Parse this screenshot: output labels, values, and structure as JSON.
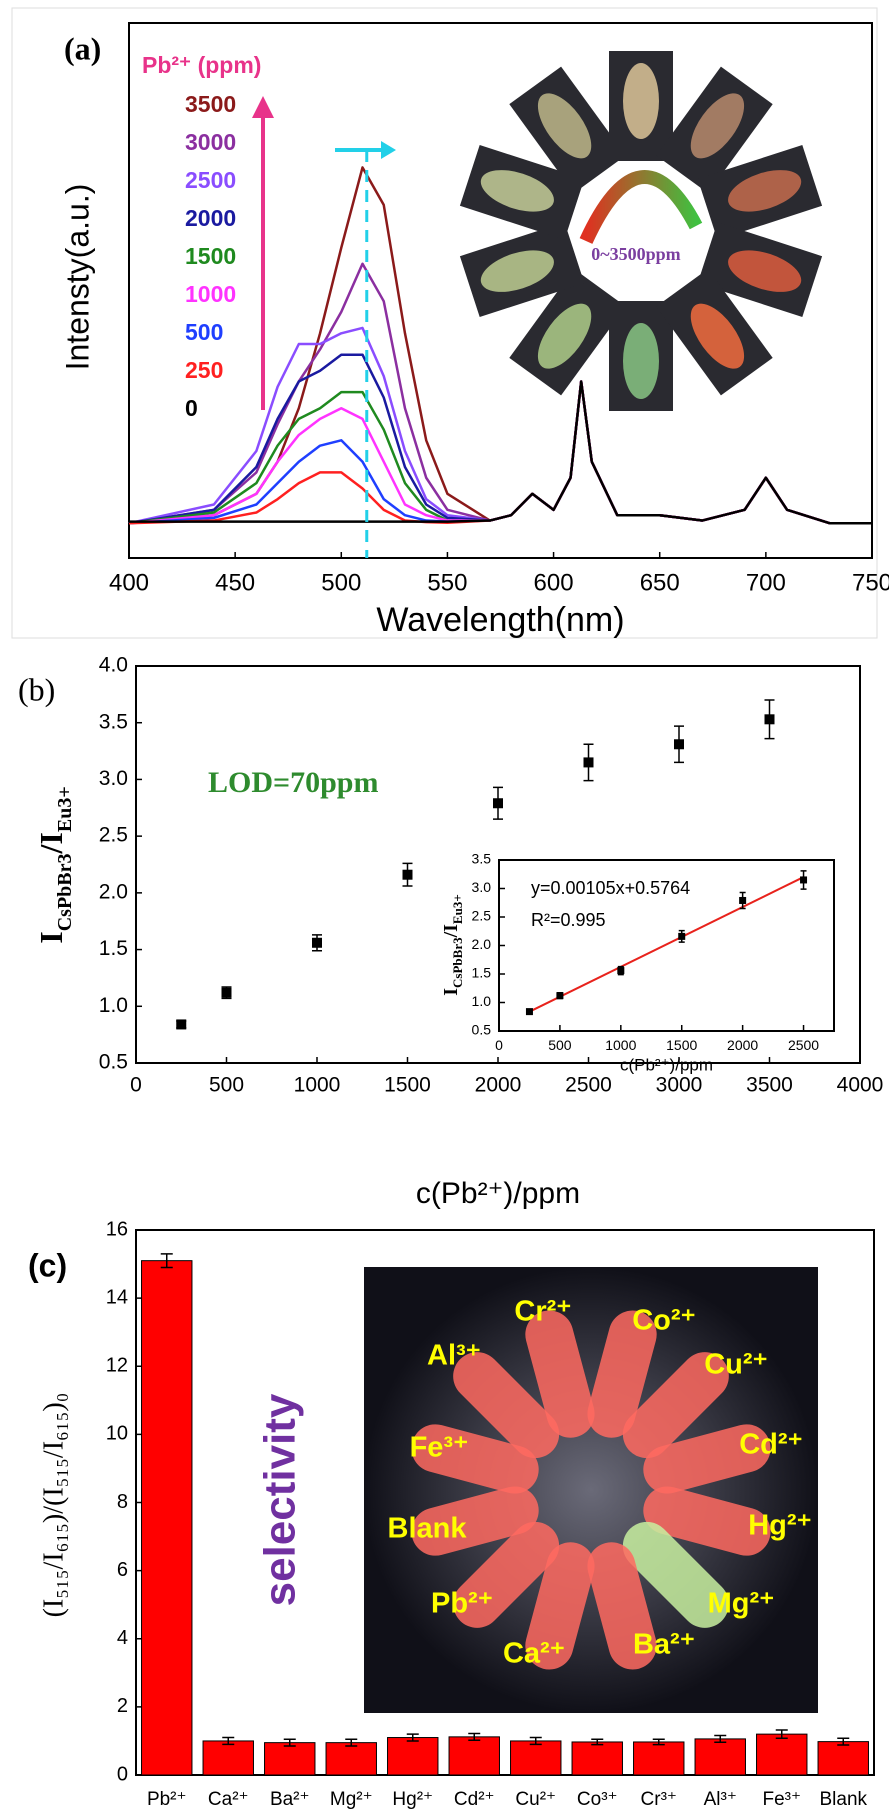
{
  "chart_data": [
    {
      "type": "line",
      "label": "(a)",
      "xlabel": "Wavelength(nm)",
      "ylabel": "Intensty(a.u.)",
      "legend_title": "Pb²⁺ (ppm)",
      "annotation": "0~3500ppm",
      "xlim": [
        400,
        750
      ],
      "xticks": [
        400,
        450,
        500,
        550,
        600,
        650,
        700,
        750
      ],
      "ylim": [
        0,
        100
      ],
      "x": [
        400,
        440,
        460,
        470,
        480,
        490,
        500,
        510,
        520,
        530,
        540,
        550,
        570,
        580,
        590,
        600,
        608,
        613,
        618,
        630,
        650,
        670,
        690,
        700,
        710,
        730,
        750
      ],
      "series": [
        {
          "name": "3500",
          "color": "#8b1a1a",
          "values": [
            6.5,
            8,
            12,
            18,
            28,
            42,
            58,
            73,
            66,
            42,
            22,
            12,
            7,
            8,
            12,
            9,
            15,
            33,
            18,
            8,
            8,
            7,
            9,
            15,
            9,
            6.5,
            6.5
          ]
        },
        {
          "name": "3000",
          "color": "#8b2fa0",
          "values": [
            6.5,
            9,
            16,
            25,
            33,
            39,
            46,
            55,
            48,
            28,
            15,
            9,
            7,
            8,
            12,
            9,
            15,
            33,
            18,
            8,
            8,
            7,
            9,
            15,
            9,
            6.5,
            6.5
          ]
        },
        {
          "name": "2500",
          "color": "#8a4dff",
          "values": [
            6.5,
            10,
            20,
            32,
            40,
            40,
            42,
            43,
            34,
            20,
            11,
            8,
            7,
            8,
            12,
            9,
            15,
            33,
            18,
            8,
            8,
            7,
            9,
            15,
            9,
            6.5,
            6.5
          ]
        },
        {
          "name": "2000",
          "color": "#1a1aa0",
          "values": [
            6.5,
            9,
            17,
            26,
            33,
            35,
            38,
            38,
            30,
            17,
            10,
            7.5,
            7,
            8,
            12,
            9,
            15,
            33,
            18,
            8,
            8,
            7,
            9,
            15,
            9,
            6.5,
            6.5
          ]
        },
        {
          "name": "1500",
          "color": "#1f8a1f",
          "values": [
            6.5,
            8.5,
            14,
            21,
            26,
            28,
            31,
            31,
            24,
            14,
            9,
            7,
            7,
            8,
            12,
            9,
            15,
            33,
            18,
            8,
            8,
            7,
            9,
            15,
            9,
            6.5,
            6.5
          ]
        },
        {
          "name": "1000",
          "color": "#ff33ff",
          "values": [
            6.5,
            8,
            12,
            18,
            23,
            26,
            28,
            26,
            18,
            10,
            8,
            7,
            7,
            8,
            12,
            9,
            15,
            33,
            18,
            8,
            8,
            7,
            9,
            15,
            9,
            6.5,
            6.5
          ]
        },
        {
          "name": "500",
          "color": "#1f3fff",
          "values": [
            6.5,
            7.5,
            10,
            14,
            18,
            21,
            22,
            18,
            11,
            8,
            7,
            6.8,
            7,
            8,
            12,
            9,
            15,
            33,
            18,
            8,
            8,
            7,
            9,
            15,
            9,
            6.5,
            6.5
          ]
        },
        {
          "name": "250",
          "color": "#ff2020",
          "values": [
            6.5,
            7,
            8.5,
            11,
            14,
            16,
            16,
            13,
            9,
            7,
            6.7,
            6.6,
            7,
            8,
            12,
            9,
            15,
            33,
            18,
            8,
            8,
            7,
            9,
            15,
            9,
            6.5,
            6.5
          ]
        },
        {
          "name": "0",
          "color": "#000000",
          "values": [
            6.8,
            6.8,
            6.8,
            6.8,
            6.8,
            6.8,
            6.8,
            6.8,
            6.8,
            6.8,
            6.8,
            6.8,
            7,
            8,
            12,
            9,
            15,
            33,
            18,
            8,
            8,
            7,
            9,
            15,
            9,
            6.5,
            6.5
          ]
        }
      ]
    },
    {
      "type": "scatter",
      "label": "(b)",
      "annotation": "LOD=70ppm",
      "xlabel": "c(Pb²⁺)/ppm",
      "ylabel": [
        "I",
        "CsPbBr3",
        "/I",
        "Eu3+"
      ],
      "xlim": [
        0,
        4000
      ],
      "xticks": [
        0,
        500,
        1000,
        1500,
        2000,
        2500,
        3000,
        3500,
        4000
      ],
      "ylim": [
        0.5,
        4.0
      ],
      "yticks": [
        0.5,
        {
          "value": 1,
          "label": "1.0"
        },
        1.5,
        {
          "value": 2,
          "label": "2.0"
        },
        2.5,
        {
          "value": 3,
          "label": "3.0"
        },
        3.5,
        {
          "value": 4,
          "label": "4.0"
        }
      ],
      "x": [
        250,
        500,
        1000,
        1500,
        2000,
        2500,
        3000,
        3500
      ],
      "values": [
        0.84,
        1.12,
        1.56,
        2.16,
        2.79,
        3.15,
        3.31,
        3.53
      ],
      "errors": [
        0.03,
        0.05,
        0.07,
        0.1,
        0.14,
        0.16,
        0.16,
        0.17
      ],
      "color": "#000000"
    },
    {
      "type": "scatter",
      "equation": "y=0.00105x+0.5764",
      "r2": "R²=0.995",
      "xlabel": "c(Pb²⁺)/ppm",
      "ylabel": [
        "I",
        "CsPbBr3",
        "/I",
        "Eu3+"
      ],
      "xlim": [
        0,
        2750
      ],
      "xticks": [
        0,
        500,
        1000,
        1500,
        2000,
        2500
      ],
      "ylim": [
        0.5,
        3.5
      ],
      "yticks": [
        0.5,
        {
          "value": 1,
          "label": "1.0"
        },
        1.5,
        {
          "value": 2,
          "label": "2.0"
        },
        2.5,
        {
          "value": 3,
          "label": "3.0"
        },
        3.5
      ],
      "x": [
        250,
        500,
        1000,
        1500,
        2000,
        2500
      ],
      "values": [
        0.84,
        1.12,
        1.56,
        2.16,
        2.79,
        3.15
      ],
      "errors": [
        0.03,
        0.05,
        0.07,
        0.1,
        0.14,
        0.16
      ],
      "color": "#000000",
      "fit": {
        "x": [
          250,
          2500
        ],
        "values": [
          0.839,
          3.201
        ],
        "color": "#e8221c"
      }
    },
    {
      "type": "bar",
      "label": "(c)",
      "annotation": "selectivity",
      "ylabel": "(I₅₁₅/I₆₁₅)/(I₅₁₅/I₆₁₅)₀",
      "categories": [
        "Pb²⁺",
        "Ca²⁺",
        "Ba²⁺",
        "Mg²⁺",
        "Hg²⁺",
        "Cd²⁺",
        "Cu²⁺",
        "Co³⁺",
        "Cr³⁺",
        "Al³⁺",
        "Fe³⁺",
        "Blank"
      ],
      "values": [
        15.1,
        1.0,
        0.95,
        0.95,
        1.1,
        1.12,
        1.0,
        0.97,
        0.97,
        1.06,
        1.2,
        0.98
      ],
      "errors": [
        0.2,
        0.1,
        0.1,
        0.1,
        0.1,
        0.1,
        0.1,
        0.08,
        0.08,
        0.1,
        0.12,
        0.1
      ],
      "color": "#ff0000",
      "ylim": [
        0,
        16
      ],
      "yticks": [
        0,
        2,
        4,
        6,
        8,
        10,
        12,
        14,
        16
      ],
      "photo_labels": [
        "Cr²⁺",
        "Co²⁺",
        "Cu²⁺",
        "Cd²⁺",
        "Hg²⁺",
        "Mg²⁺",
        "Ba²⁺",
        "Ca²⁺",
        "Pb²⁺",
        "Blank",
        "Fe³⁺",
        "Al³⁺"
      ]
    }
  ]
}
